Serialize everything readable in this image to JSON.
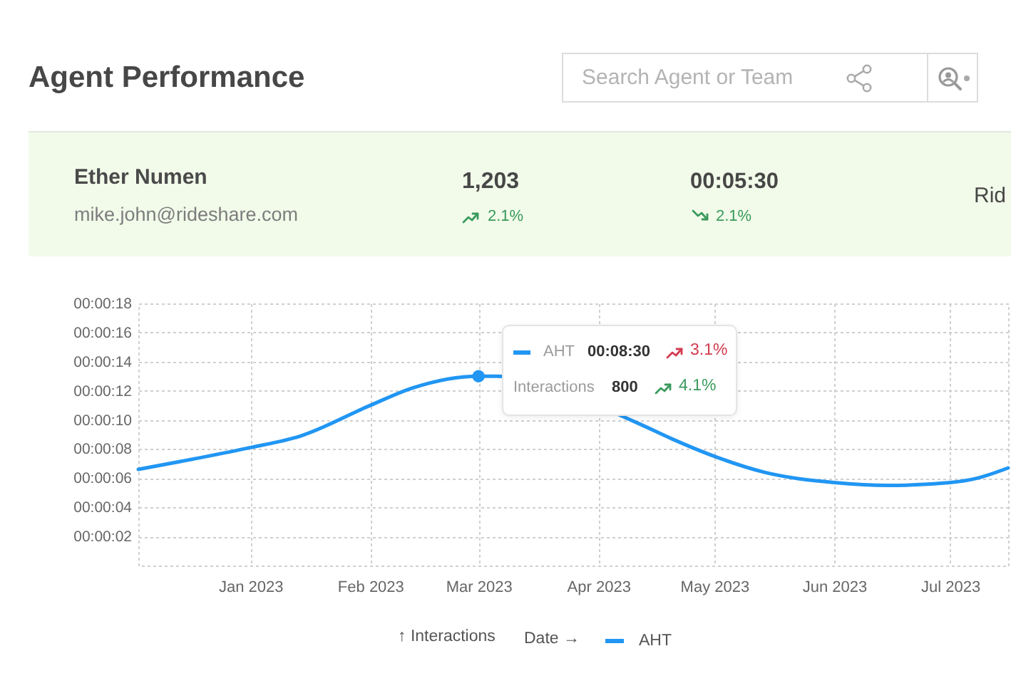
{
  "chart_data": {
    "type": "line",
    "title": "Agent Performance",
    "xlabel": "Date →",
    "xlim": [
      "2022-12-03",
      "2023-07-16"
    ],
    "xticks": [
      {
        "value": "2023-01",
        "label": "Jan 2023"
      },
      {
        "value": "2023-02",
        "label": "Feb 2023"
      },
      {
        "value": "2023-03",
        "label": "Mar 2023"
      },
      {
        "value": "2023-04",
        "label": "Apr 2023"
      },
      {
        "value": "2023-05",
        "label": "May 2023"
      },
      {
        "value": "2023-06",
        "label": "Jun 2023"
      },
      {
        "value": "2023-07",
        "label": "Jul 2023"
      }
    ],
    "ylim": [
      0,
      18
    ],
    "yticks": [
      {
        "value": 2,
        "label": "00:00:02"
      },
      {
        "value": 4,
        "label": "00:00:04"
      },
      {
        "value": 6,
        "label": "00:00:06"
      },
      {
        "value": 8,
        "label": "00:00:08"
      },
      {
        "value": 10,
        "label": "00:00:10"
      },
      {
        "value": 12,
        "label": "00:00:12"
      },
      {
        "value": 14,
        "label": "00:00:14"
      },
      {
        "value": 16,
        "label": "00:00:16"
      },
      {
        "value": 18,
        "label": "00:00:18"
      }
    ],
    "grid": true,
    "legend": "bottom",
    "series": [
      {
        "name": "AHT",
        "color": "#2196f3",
        "x": [
          "2022-12-03",
          "2022-12-17",
          "2023-01",
          "2023-01-14",
          "2023-02",
          "2023-02-12",
          "2023-03",
          "2023-03-06",
          "2023-04-11",
          "2023-04-20",
          "2023-05",
          "2023-05-14",
          "2023-06",
          "2023-06-15",
          "2023-07",
          "2023-07-08",
          "2023-07-16"
        ],
        "values": [
          6.6,
          7.3,
          8.1,
          8.9,
          11.0,
          12.2,
          13.0,
          13.0,
          9.8,
          8.7,
          7.5,
          6.4,
          5.7,
          5.5,
          5.7,
          6.0,
          6.7
        ]
      },
      {
        "type": "scatter",
        "color": "#2196f3",
        "x": [
          "2023-03"
        ],
        "values": [
          13.0
        ]
      }
    ],
    "annotations": [
      "Search Agent or Team",
      "Ether Numen",
      "mike.john@rideshare.com",
      "1,203",
      "2.1%",
      "00:05:30",
      "2.1%",
      "Rid",
      "AHT",
      "00:08:30",
      "3.1%",
      "Interactions",
      "800",
      "4.1%",
      "↑ Interactions"
    ]
  }
}
